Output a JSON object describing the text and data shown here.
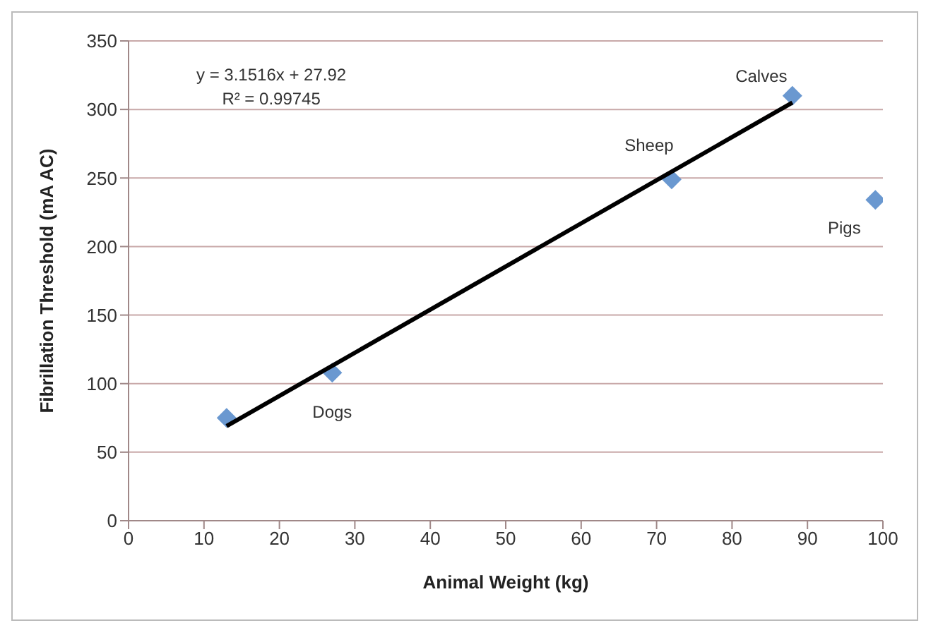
{
  "chart_data": {
    "type": "scatter",
    "xlabel": "Animal Weight (kg)",
    "ylabel": "Fibrillation Threshold  (mA AC)",
    "x": [
      13,
      27,
      72,
      88,
      99
    ],
    "series": [
      {
        "color": "#6a98d0",
        "values": [
          75,
          108,
          249,
          310,
          234
        ],
        "marker": "diamond"
      },
      {
        "type": "line",
        "color": "#000000",
        "x": [
          13,
          88
        ],
        "values": [
          69,
          305
        ],
        "marker": "none",
        "line_style": "solid"
      }
    ],
    "xlim": [
      0,
      100
    ],
    "xticks": [
      0,
      10,
      20,
      30,
      40,
      50,
      60,
      70,
      80,
      90,
      100
    ],
    "ylim": [
      0,
      350
    ],
    "yticks": [
      0,
      50,
      100,
      150,
      200,
      250,
      300,
      350
    ],
    "grid": "y",
    "annotations": [
      "y = 3.1516x + 27.92",
      "R² = 0.99745",
      {
        "text": "Dogs",
        "x": 27,
        "y": 108
      },
      {
        "text": "Sheep",
        "x": 72,
        "y": 249
      },
      {
        "text": "Calves",
        "x": 88,
        "y": 310
      },
      {
        "text": "Pigs",
        "x": 99,
        "y": 234
      }
    ]
  }
}
